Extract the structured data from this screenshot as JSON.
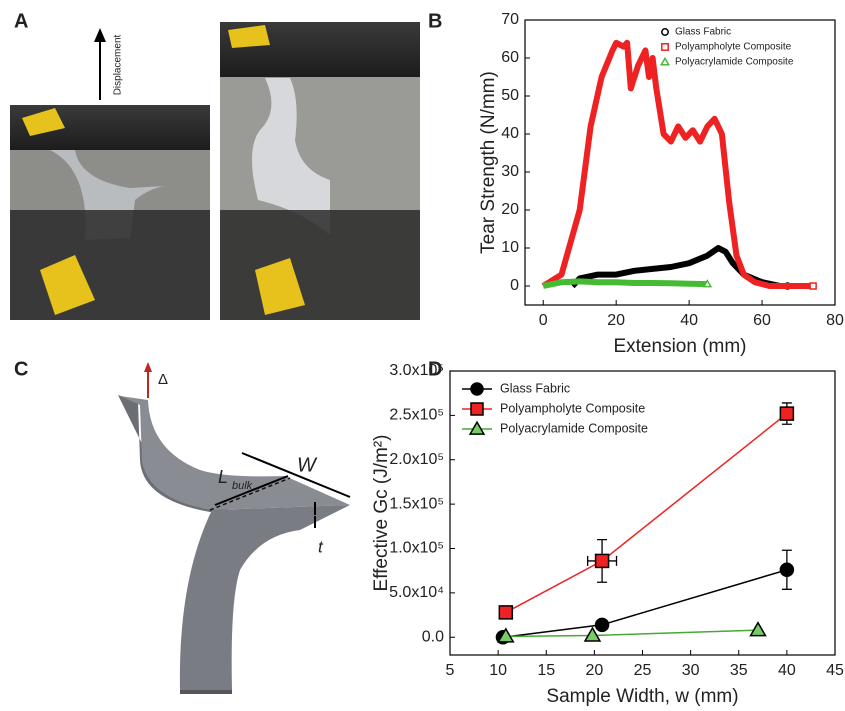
{
  "panels": [
    "A",
    "B",
    "C",
    "D"
  ],
  "panel_a": {
    "arrow_label": "Displacement"
  },
  "panel_c": {
    "delta": "Δ",
    "width": "W",
    "length": "L",
    "length_sub": "bulk",
    "thickness": "t"
  },
  "chart_data": [
    {
      "type": "line",
      "xlabel": "Extension (mm)",
      "ylabel": "Tear Strength (N/mm)",
      "xlim": [
        -5,
        80
      ],
      "ylim": [
        -5,
        70
      ],
      "xticks": [
        0,
        20,
        40,
        60,
        80
      ],
      "yticks": [
        0,
        10,
        20,
        30,
        40,
        50,
        60,
        70
      ],
      "legend": "top-right",
      "series": [
        {
          "name": "Glass Fabric",
          "color": "#000000",
          "marker": "circle",
          "x": [
            8,
            10,
            15,
            20,
            25,
            30,
            35,
            40,
            45,
            48,
            50,
            52,
            55,
            60,
            65,
            67
          ],
          "values": [
            0,
            2,
            3,
            3,
            4,
            4.5,
            5,
            6,
            8,
            10,
            9,
            6,
            3,
            1,
            0,
            0
          ]
        },
        {
          "name": "Polyampholyte Composite",
          "color": "#ee2222",
          "marker": "square",
          "x": [
            0,
            5,
            10,
            13,
            16,
            19,
            20,
            22,
            23,
            24,
            26,
            28,
            29,
            30,
            31,
            33,
            35,
            37,
            39,
            41,
            43,
            45,
            47,
            49,
            51,
            53,
            55,
            58,
            62,
            66,
            70,
            74
          ],
          "values": [
            0,
            3,
            20,
            42,
            55,
            62,
            64,
            63,
            64,
            52,
            58,
            62,
            55,
            60,
            52,
            40,
            38,
            42,
            39,
            41,
            38,
            42,
            44,
            40,
            22,
            8,
            3,
            1,
            0,
            0,
            0,
            0
          ]
        },
        {
          "name": "Polyacrylamide Composite",
          "color": "#44bb33",
          "marker": "triangle",
          "x": [
            0,
            5,
            10,
            15,
            20,
            25,
            30,
            35,
            40,
            45
          ],
          "values": [
            0,
            1,
            1.2,
            1,
            1,
            0.8,
            0.8,
            0.7,
            0.6,
            0.5
          ]
        }
      ]
    },
    {
      "type": "scatter",
      "xlabel": "Sample Width, w (mm)",
      "ylabel": "Effective Gc (J/m²)",
      "xlim": [
        5,
        45
      ],
      "ylim": [
        -20000,
        300000
      ],
      "xticks": [
        5,
        10,
        15,
        20,
        25,
        30,
        35,
        40,
        45
      ],
      "yticks": [
        {
          "value": 0,
          "label": "0.0"
        },
        {
          "value": 50000,
          "label": "5.0x10⁴"
        },
        {
          "value": 100000,
          "label": "1.0x10⁵"
        },
        {
          "value": 150000,
          "label": "1.5x10⁵"
        },
        {
          "value": 200000,
          "label": "2.0x10⁵"
        },
        {
          "value": 250000,
          "label": "2.5x10⁵"
        },
        {
          "value": 300000,
          "label": "3.0x10⁵"
        }
      ],
      "legend": "top-left",
      "series": [
        {
          "name": "Glass Fabric",
          "color": "#000000",
          "line_color": "#000000",
          "marker": "circle",
          "x": [
            10.5,
            20.8,
            40
          ],
          "values": [
            0,
            14000,
            76000
          ],
          "yerr": [
            null,
            null,
            22000
          ],
          "xerr": [
            null,
            null,
            null
          ]
        },
        {
          "name": "Polyampholyte Composite",
          "color": "#ee2222",
          "line_color": "#ee2222",
          "marker": "square",
          "x": [
            10.8,
            20.8,
            40
          ],
          "values": [
            28000,
            86000,
            252000
          ],
          "yerr": [
            null,
            24000,
            12000
          ],
          "xerr": [
            null,
            1.5,
            null
          ]
        },
        {
          "name": "Polyacrylamide Composite",
          "color": "#77cc66",
          "line_color": "#44aa33",
          "marker": "triangle",
          "x": [
            10.8,
            19.8,
            37
          ],
          "values": [
            1000,
            2000,
            8000
          ],
          "yerr": [
            null,
            null,
            null
          ],
          "xerr": [
            null,
            null,
            null
          ]
        }
      ]
    }
  ]
}
